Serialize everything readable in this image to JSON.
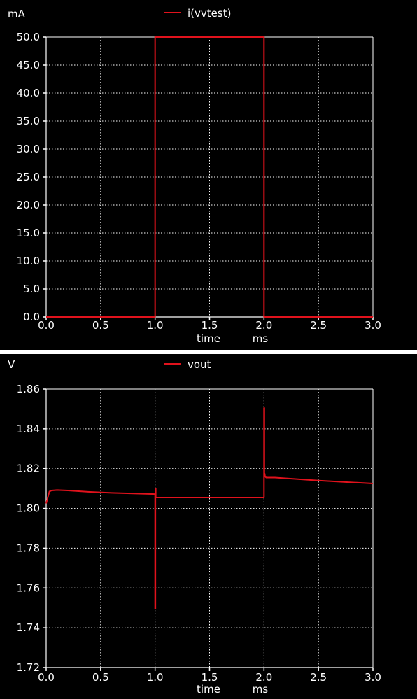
{
  "colors": {
    "background": "#000000",
    "grid": "#ffffff",
    "trace": "#e0121c",
    "text": "#ffffff",
    "separator": "#ffffff"
  },
  "chart_data": [
    {
      "type": "line",
      "unit_label": "mA",
      "xlabel": "time",
      "xunit": "ms",
      "xlim": [
        0.0,
        3.0
      ],
      "ylim": [
        0.0,
        50.0
      ],
      "xticks": [
        "0.0",
        "0.5",
        "1.0",
        "1.5",
        "2.0",
        "2.5",
        "3.0"
      ],
      "yticks": [
        "0.0",
        "5.0",
        "10.0",
        "15.0",
        "20.0",
        "25.0",
        "30.0",
        "35.0",
        "40.0",
        "45.0",
        "50.0"
      ],
      "grid": true,
      "legend_position": "top-center",
      "series": [
        {
          "name": "i(vvtest)",
          "color": "#e0121c",
          "x": [
            0.0,
            1.0,
            1.0,
            2.0,
            2.0,
            3.0
          ],
          "y": [
            0.0,
            0.0,
            50.0,
            50.0,
            0.0,
            0.0
          ]
        }
      ]
    },
    {
      "type": "line",
      "unit_label": "V",
      "xlabel": "time",
      "xunit": "ms",
      "xlim": [
        0.0,
        3.0
      ],
      "ylim": [
        1.72,
        1.86
      ],
      "xticks": [
        "0.0",
        "0.5",
        "1.0",
        "1.5",
        "2.0",
        "2.5",
        "3.0"
      ],
      "yticks": [
        "1.72",
        "1.74",
        "1.76",
        "1.78",
        "1.80",
        "1.82",
        "1.84",
        "1.86"
      ],
      "grid": true,
      "legend_position": "top-center",
      "series": [
        {
          "name": "vout",
          "color": "#e0121c",
          "x": [
            0.0,
            0.01,
            0.03,
            0.05,
            0.1,
            0.2,
            0.4,
            0.6,
            0.8,
            1.0,
            1.0,
            1.003,
            1.003,
            1.006,
            1.006,
            1.01,
            1.03,
            1.1,
            1.5,
            1.9,
            2.0,
            2.0,
            2.003,
            2.003,
            2.006,
            2.01,
            2.02,
            2.1,
            2.5,
            3.0
          ],
          "y": [
            1.8025,
            1.8045,
            1.8085,
            1.809,
            1.8092,
            1.809,
            1.8083,
            1.8078,
            1.8075,
            1.8072,
            1.7495,
            1.7495,
            1.81,
            1.81,
            1.8055,
            1.8055,
            1.8055,
            1.8055,
            1.8055,
            1.8055,
            1.8055,
            1.8505,
            1.8505,
            1.8175,
            1.8175,
            1.816,
            1.8155,
            1.8155,
            1.814,
            1.8125
          ]
        }
      ]
    }
  ]
}
